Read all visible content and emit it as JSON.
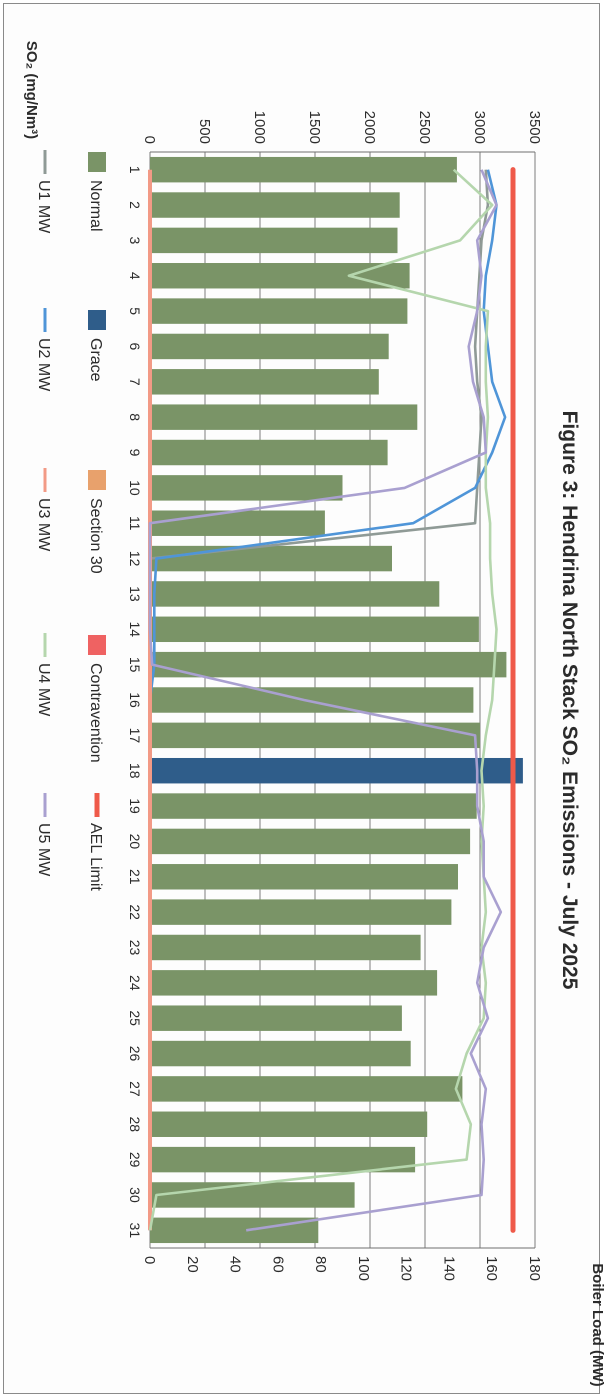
{
  "chart_data": {
    "type": "bar",
    "title": "Figure 3: Hendrina North Stack SO₂ Emissions - July 2025",
    "ylabel_left": "SO₂  (mg/Nm³)",
    "ylabel_right": "Boiler Load (MW)",
    "categories": [
      "1",
      "2",
      "3",
      "4",
      "5",
      "6",
      "7",
      "8",
      "9",
      "10",
      "11",
      "12",
      "13",
      "14",
      "15",
      "16",
      "17",
      "18",
      "19",
      "20",
      "21",
      "22",
      "23",
      "24",
      "25",
      "26",
      "27",
      "28",
      "29",
      "30",
      "31"
    ],
    "so2_axis": {
      "min": 0,
      "max": 3500,
      "ticks": [
        "0",
        "500",
        "1000",
        "1500",
        "2000",
        "2500",
        "3000",
        "3500"
      ]
    },
    "load_axis": {
      "min": 0,
      "max": 180,
      "ticks": [
        "0",
        "20",
        "40",
        "60",
        "80",
        "100",
        "120",
        "140",
        "160",
        "180"
      ]
    },
    "bars": {
      "values": [
        2790,
        2270,
        2250,
        2360,
        2340,
        2170,
        2080,
        2430,
        2160,
        1750,
        1590,
        2200,
        2630,
        2990,
        3240,
        2940,
        3000,
        3390,
        2970,
        2910,
        2800,
        2740,
        2460,
        2610,
        2290,
        2370,
        2840,
        2520,
        2410,
        1860,
        1530
      ],
      "status": [
        "Normal",
        "Normal",
        "Normal",
        "Normal",
        "Normal",
        "Normal",
        "Normal",
        "Normal",
        "Normal",
        "Normal",
        "Normal",
        "Normal",
        "Normal",
        "Normal",
        "Normal",
        "Normal",
        "Normal",
        "Grace",
        "Normal",
        "Normal",
        "Normal",
        "Normal",
        "Normal",
        "Normal",
        "Normal",
        "Normal",
        "Normal",
        "Normal",
        "Normal",
        "Normal",
        "Normal"
      ]
    },
    "ael_limit": {
      "name": "AEL Limit",
      "value": 3300
    },
    "series": [
      {
        "name": "U1 MW",
        "values": [
          157,
          158,
          155,
          154,
          153,
          152,
          153,
          155,
          154,
          153,
          152,
          0,
          0,
          0,
          0,
          0,
          0,
          0,
          0,
          0,
          0,
          0,
          0,
          0,
          0,
          0,
          0,
          0,
          0,
          0,
          0
        ]
      },
      {
        "name": "U2 MW",
        "values": [
          158,
          162,
          160,
          157,
          156,
          158,
          160,
          166,
          160,
          152,
          123,
          3,
          2,
          2,
          2,
          0,
          0,
          0,
          0,
          0,
          0,
          0,
          0,
          0,
          0,
          0,
          0,
          0,
          0,
          0,
          0
        ]
      },
      {
        "name": "U3 MW",
        "values": [
          0,
          0,
          0,
          0,
          0,
          0,
          0,
          0,
          0,
          0,
          0,
          0,
          0,
          0,
          0,
          0,
          0,
          0,
          0,
          0,
          0,
          0,
          0,
          0,
          0,
          0,
          0,
          0,
          0,
          0,
          0
        ]
      },
      {
        "name": "U4 MW",
        "values": [
          142,
          160,
          145,
          93,
          158,
          157,
          157,
          158,
          157,
          157,
          159,
          159,
          160,
          162,
          161,
          160,
          157,
          155,
          156,
          155,
          156,
          157,
          155,
          157,
          156,
          148,
          143,
          150,
          148,
          3,
          0
        ]
      },
      {
        "name": "U5 MW",
        "values": [
          155,
          162,
          153,
          155,
          153,
          149,
          151,
          156,
          157,
          119,
          0,
          0,
          0,
          0,
          1,
          72,
          152,
          153,
          153,
          156,
          156,
          164,
          156,
          153,
          158,
          150,
          157,
          155,
          156,
          155,
          45
        ]
      }
    ],
    "legend": [
      {
        "name": "Normal",
        "kind": "bar",
        "color": "#7a9467"
      },
      {
        "name": "Grace",
        "kind": "bar",
        "color": "#2f5d8a"
      },
      {
        "name": "Section 30",
        "kind": "bar",
        "color": "#e8a16c"
      },
      {
        "name": "Contravention",
        "kind": "bar",
        "color": "#ef6262"
      },
      {
        "name": "AEL Limit",
        "kind": "line",
        "color": "#ef5a4a"
      },
      {
        "name": "U1 MW",
        "kind": "line",
        "color": "#8f9a96"
      },
      {
        "name": "U2 MW",
        "kind": "line",
        "color": "#4f95d8"
      },
      {
        "name": "U3 MW",
        "kind": "line",
        "color": "#f29a86"
      },
      {
        "name": "U4 MW",
        "kind": "line",
        "color": "#b5d6ad"
      },
      {
        "name": "U5 MW",
        "kind": "line",
        "color": "#a9a0d0"
      }
    ],
    "colors": {
      "Normal": "#7a9467",
      "Grace": "#2f5d8a",
      "AEL Limit": "#ef5a4a",
      "U1 MW": "#8f9a96",
      "U2 MW": "#4f95d8",
      "U3 MW": "#f29a86",
      "U4 MW": "#b5d6ad",
      "U5 MW": "#a9a0d0"
    },
    "grid": true,
    "orientation": "rotated-90-clockwise",
    "legend_position": "bottom"
  }
}
